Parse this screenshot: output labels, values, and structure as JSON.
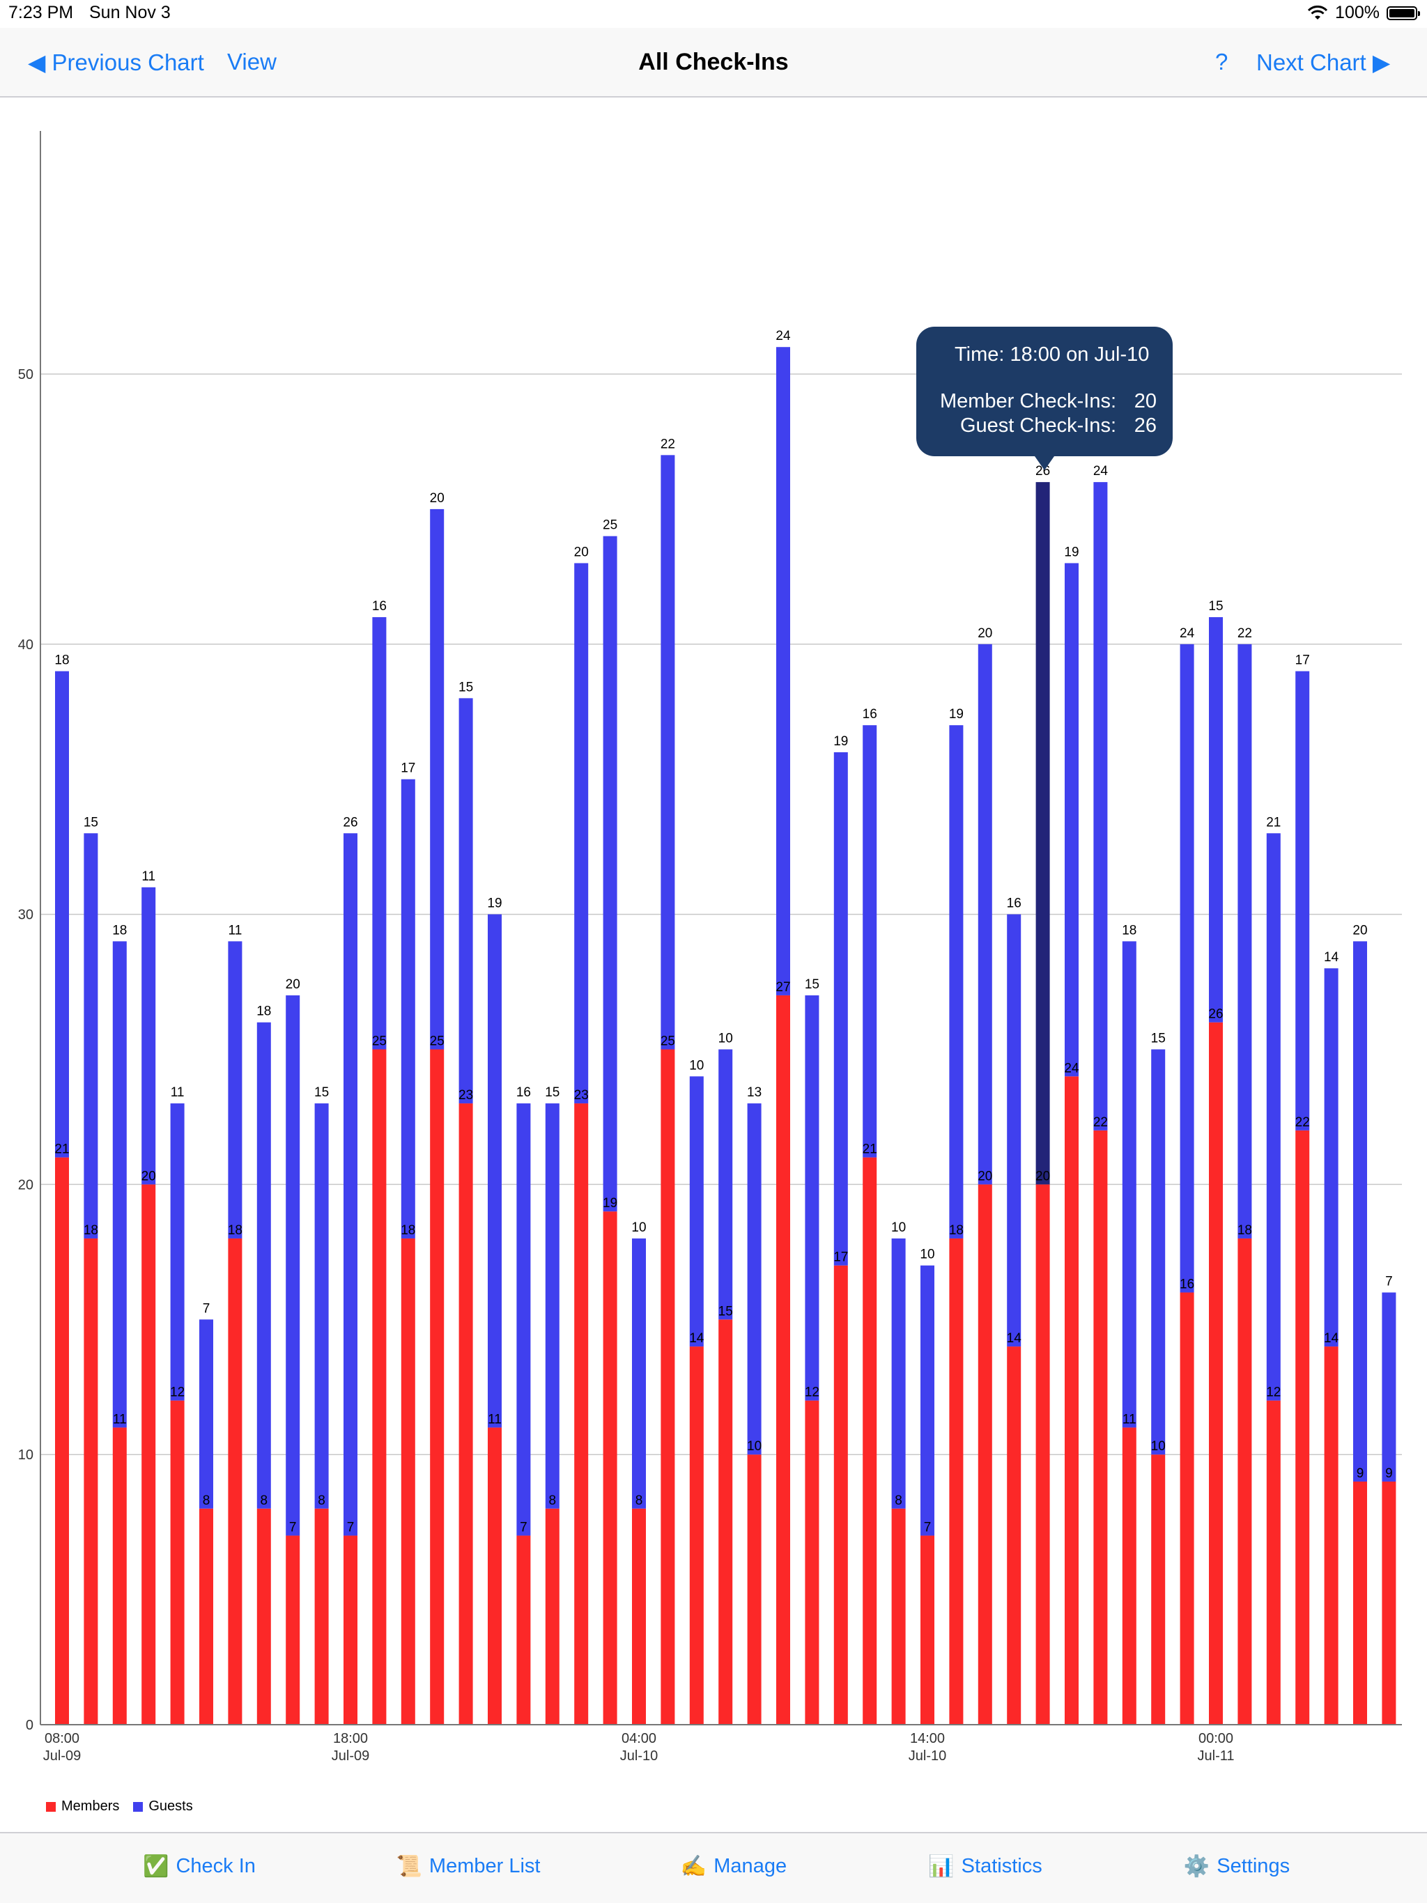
{
  "status": {
    "time": "7:23 PM",
    "date": "Sun Nov 3",
    "battery": "100%"
  },
  "nav": {
    "previous": "◀ Previous Chart",
    "view": "View",
    "title": "All Check-Ins",
    "help": "?",
    "next": "Next Chart ▶"
  },
  "tooltip": {
    "time": "Time: 18:00 on Jul-10",
    "member_label": "Member Check-Ins:",
    "member_value": "20",
    "guest_label": "Guest Check-Ins:",
    "guest_value": "26"
  },
  "legend": {
    "members": "Members",
    "guests": "Guests"
  },
  "tabs": [
    {
      "label": "Check In",
      "icon": "✅"
    },
    {
      "label": "Member List",
      "icon": "📜"
    },
    {
      "label": "Manage",
      "icon": "✍️"
    },
    {
      "label": "Statistics",
      "icon": "📊"
    },
    {
      "label": "Settings",
      "icon": "⚙️"
    }
  ],
  "colors": {
    "members": "#fc2828",
    "guests": "#4040ee",
    "highlight": "#222478",
    "accent": "#1a7cf5",
    "tooltip": "#1d3b66"
  },
  "chart_data": {
    "type": "bar",
    "stacked": true,
    "ylim": [
      0,
      59
    ],
    "yticks": [
      0,
      10,
      20,
      30,
      40,
      50
    ],
    "xtick_labels": [
      {
        "index": 0,
        "time": "08:00",
        "date": "Jul-09"
      },
      {
        "index": 10,
        "time": "18:00",
        "date": "Jul-09"
      },
      {
        "index": 20,
        "time": "04:00",
        "date": "Jul-10"
      },
      {
        "index": 30,
        "time": "14:00",
        "date": "Jul-10"
      },
      {
        "index": 40,
        "time": "00:00",
        "date": "Jul-11"
      }
    ],
    "highlight_index": 34,
    "grid": true,
    "legend_position": "bottom-left",
    "series": [
      {
        "name": "Members",
        "values": [
          21,
          18,
          11,
          20,
          12,
          8,
          18,
          8,
          7,
          8,
          7,
          25,
          18,
          25,
          23,
          11,
          7,
          8,
          23,
          19,
          8,
          25,
          14,
          15,
          10,
          27,
          12,
          17,
          21,
          8,
          7,
          18,
          20,
          14,
          20,
          24,
          22,
          11,
          10,
          16,
          26,
          18,
          12,
          22,
          14,
          9,
          9
        ]
      },
      {
        "name": "Guests",
        "values": [
          18,
          15,
          18,
          11,
          11,
          7,
          11,
          18,
          20,
          15,
          26,
          16,
          17,
          20,
          15,
          19,
          16,
          15,
          20,
          25,
          10,
          22,
          10,
          10,
          13,
          24,
          15,
          19,
          16,
          10,
          10,
          19,
          20,
          16,
          26,
          19,
          24,
          18,
          15,
          24,
          15,
          22,
          21,
          17,
          14,
          20,
          7
        ]
      }
    ]
  }
}
